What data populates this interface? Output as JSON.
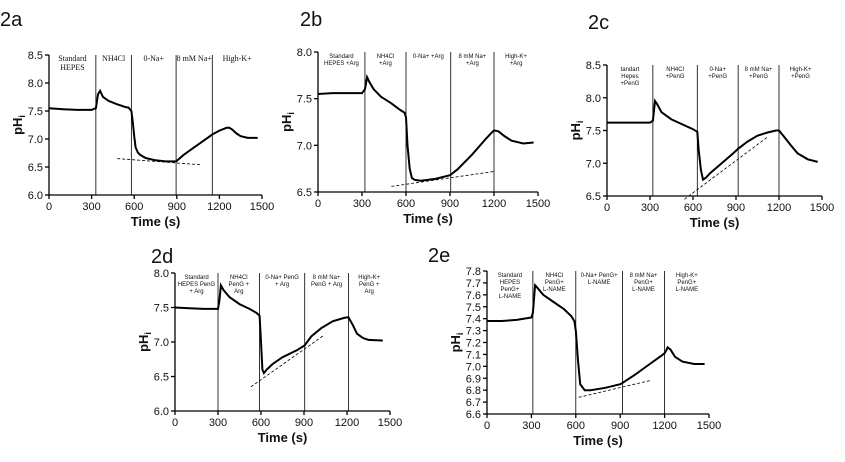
{
  "chart_data": [
    {
      "label": "2a",
      "type": "line",
      "xlabel": "Time (s)",
      "ylabel": "pHi",
      "xlim": [
        0,
        1500
      ],
      "ylim": [
        6.0,
        8.5
      ],
      "xticks": [
        0,
        300,
        600,
        900,
        1200,
        1500
      ],
      "yticks": [
        6.0,
        6.5,
        7.0,
        7.5,
        8.0,
        8.5
      ],
      "phase_boundaries": [
        330,
        580,
        895,
        1150
      ],
      "phases": [
        "Standard HEPES",
        "NH4Cl",
        "0-Na+",
        "8 mM Na+",
        "High-K+"
      ],
      "series": [
        {
          "x": [
            0,
            100,
            200,
            300,
            330,
            345,
            360,
            380,
            420,
            480,
            540,
            560,
            580,
            590,
            600,
            610,
            625,
            640,
            680,
            750,
            820,
            880,
            895,
            950,
            1050,
            1150,
            1200,
            1250,
            1270,
            1290,
            1320,
            1350,
            1400,
            1450,
            1470
          ],
          "y": [
            7.55,
            7.53,
            7.52,
            7.52,
            7.55,
            7.8,
            7.86,
            7.75,
            7.68,
            7.62,
            7.57,
            7.56,
            7.5,
            7.3,
            7.05,
            6.85,
            6.76,
            6.72,
            6.66,
            6.62,
            6.6,
            6.6,
            6.6,
            6.72,
            6.9,
            7.08,
            7.15,
            7.2,
            7.2,
            7.17,
            7.1,
            7.05,
            7.02,
            7.02,
            7.02
          ]
        }
      ],
      "fit_line": {
        "x": [
          480,
          1070
        ],
        "y": [
          6.65,
          6.54
        ]
      }
    },
    {
      "label": "2b",
      "type": "line",
      "xlabel": "Time (s)",
      "ylabel": "pHi",
      "xlim": [
        0,
        1500
      ],
      "ylim": [
        6.5,
        8.0
      ],
      "xticks": [
        0,
        300,
        600,
        900,
        1200,
        1500
      ],
      "yticks": [
        6.5,
        7.0,
        7.5,
        8.0
      ],
      "phase_boundaries": [
        320,
        600,
        905,
        1200
      ],
      "phases": [
        "Standard HEPES +Arg",
        "NH4Cl +Arg",
        "0-Na+ +Arg",
        "8 mM Na+ +Arg",
        "High-K+ +Arg"
      ],
      "series": [
        {
          "x": [
            0,
            100,
            200,
            300,
            320,
            335,
            350,
            380,
            430,
            500,
            560,
            590,
            600,
            610,
            625,
            640,
            660,
            700,
            800,
            900,
            950,
            1050,
            1150,
            1180,
            1200,
            1230,
            1270,
            1320,
            1400,
            1470
          ],
          "y": [
            7.55,
            7.56,
            7.56,
            7.56,
            7.6,
            7.73,
            7.68,
            7.6,
            7.52,
            7.45,
            7.38,
            7.35,
            7.3,
            7.0,
            6.75,
            6.65,
            6.63,
            6.62,
            6.64,
            6.68,
            6.74,
            6.9,
            7.08,
            7.13,
            7.16,
            7.15,
            7.1,
            7.05,
            7.02,
            7.03
          ]
        }
      ],
      "fit_line": {
        "x": [
          500,
          1200
        ],
        "y": [
          6.56,
          6.72
        ]
      }
    },
    {
      "label": "2c",
      "type": "line",
      "xlabel": "Time (s)",
      "ylabel": "pHi",
      "xlim": [
        0,
        1500
      ],
      "ylim": [
        6.5,
        8.5
      ],
      "xticks": [
        0,
        300,
        600,
        900,
        1200,
        1500
      ],
      "yticks": [
        6.5,
        7.0,
        7.5,
        8.0,
        8.5
      ],
      "phase_boundaries": [
        320,
        630,
        915,
        1200
      ],
      "phases": [
        "tandart Hepes +PenG",
        "NH4Cl +PenG",
        "0-Na+ +PenG",
        "8 mM Na+ +PenG",
        "High-K+ +PenG"
      ],
      "series": [
        {
          "x": [
            0,
            100,
            200,
            300,
            320,
            335,
            350,
            380,
            450,
            520,
            600,
            630,
            640,
            655,
            670,
            690,
            720,
            800,
            880,
            915,
            980,
            1050,
            1120,
            1180,
            1200,
            1230,
            1280,
            1330,
            1400,
            1470
          ],
          "y": [
            7.62,
            7.62,
            7.62,
            7.62,
            7.65,
            7.95,
            7.9,
            7.78,
            7.67,
            7.6,
            7.52,
            7.48,
            7.2,
            6.9,
            6.75,
            6.78,
            6.85,
            7.0,
            7.15,
            7.22,
            7.33,
            7.42,
            7.47,
            7.5,
            7.5,
            7.42,
            7.28,
            7.15,
            7.06,
            7.02
          ]
        }
      ],
      "fit_line": {
        "x": [
          540,
          1120
        ],
        "y": [
          6.45,
          7.4
        ]
      }
    },
    {
      "label": "2d",
      "type": "line",
      "xlabel": "Time (s)",
      "ylabel": "pHi",
      "xlim": [
        0,
        1500
      ],
      "ylim": [
        6.0,
        8.0
      ],
      "xticks": [
        0,
        300,
        600,
        900,
        1200,
        1500
      ],
      "yticks": [
        6.0,
        6.5,
        7.0,
        7.5,
        8.0
      ],
      "phase_boundaries": [
        300,
        590,
        905,
        1210
      ],
      "phases": [
        "Standard HEPES PenG + Arg",
        "NH4Cl PenG + Arg",
        "0-Na+ PenG + Arg",
        "8 mM Na+ PenG + Arg",
        "High-K+ PenG + Arg"
      ],
      "series": [
        {
          "x": [
            0,
            100,
            200,
            300,
            310,
            320,
            340,
            380,
            450,
            520,
            570,
            590,
            600,
            610,
            620,
            640,
            680,
            750,
            850,
            905,
            950,
            1020,
            1100,
            1180,
            1210,
            1240,
            1270,
            1310,
            1350,
            1450
          ],
          "y": [
            7.5,
            7.49,
            7.48,
            7.48,
            7.6,
            7.82,
            7.75,
            7.65,
            7.55,
            7.48,
            7.42,
            7.38,
            7.0,
            6.6,
            6.55,
            6.6,
            6.68,
            6.78,
            6.88,
            6.95,
            7.08,
            7.2,
            7.3,
            7.35,
            7.36,
            7.25,
            7.12,
            7.06,
            7.03,
            7.02
          ]
        }
      ],
      "fit_line": {
        "x": [
          530,
          1040
        ],
        "y": [
          6.35,
          7.1
        ]
      }
    },
    {
      "label": "2e",
      "type": "line",
      "xlabel": "Time (s)",
      "ylabel": "pHi",
      "xlim": [
        0,
        1500
      ],
      "ylim": [
        6.6,
        7.8
      ],
      "xticks": [
        0,
        300,
        600,
        900,
        1200,
        1500
      ],
      "yticks": [
        6.6,
        6.7,
        6.8,
        6.9,
        7.0,
        7.1,
        7.2,
        7.3,
        7.4,
        7.5,
        7.6,
        7.7,
        7.8
      ],
      "phase_boundaries": [
        310,
        600,
        915,
        1200
      ],
      "phases": [
        "Standard HEPES PenG+ L-NAME",
        "NH4Cl PenG+ L-NAME",
        "0-Na+ PenG+ L-NAME",
        "8 mM Na+ PenG+ L-NAME",
        "High-K+ PenG+ L-NAME"
      ],
      "series": [
        {
          "x": [
            0,
            100,
            200,
            300,
            310,
            325,
            340,
            380,
            450,
            520,
            570,
            590,
            600,
            615,
            630,
            660,
            700,
            800,
            900,
            915,
            1000,
            1100,
            1180,
            1200,
            1210,
            1220,
            1240,
            1270,
            1320,
            1400,
            1470
          ],
          "y": [
            7.38,
            7.38,
            7.39,
            7.41,
            7.45,
            7.68,
            7.66,
            7.6,
            7.54,
            7.48,
            7.42,
            7.38,
            7.3,
            7.05,
            6.85,
            6.8,
            6.8,
            6.82,
            6.85,
            6.86,
            6.93,
            7.02,
            7.09,
            7.11,
            7.13,
            7.16,
            7.14,
            7.08,
            7.04,
            7.02,
            7.02
          ]
        }
      ],
      "fit_line": {
        "x": [
          620,
          1100
        ],
        "y": [
          6.74,
          6.88
        ]
      }
    }
  ]
}
